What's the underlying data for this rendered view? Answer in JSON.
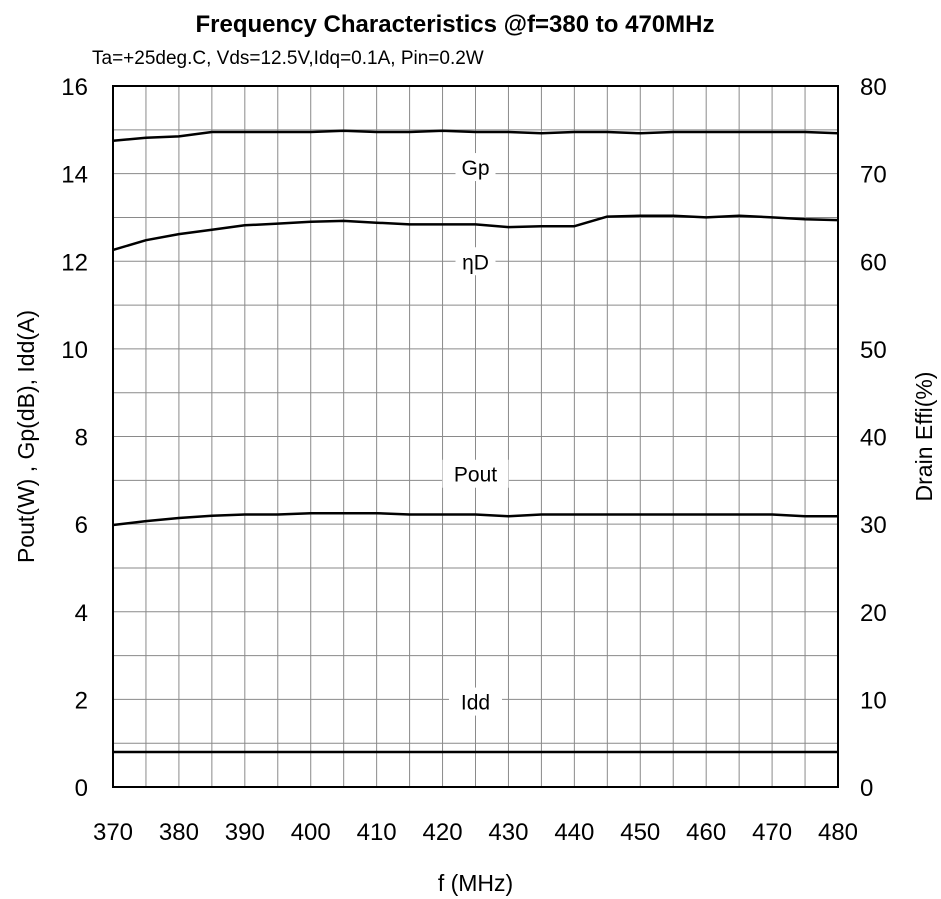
{
  "chart_data": {
    "type": "line",
    "title": "Frequency Characteristics @f=380 to 470MHz",
    "subtitle": "Ta=+25deg.C, Vds=12.5V,Idq=0.1A, Pin=0.2W",
    "xlabel": "f  (MHz)",
    "ylabel": "Pout(W) , Gp(dB), Idd(A)",
    "y2label": "Drain Effi(%)",
    "xlim": [
      370,
      480
    ],
    "ylim": [
      0,
      16
    ],
    "y2lim": [
      0,
      80
    ],
    "xticks": [
      "370",
      "380",
      "390",
      "400",
      "410",
      "420",
      "430",
      "440",
      "450",
      "460",
      "470",
      "480"
    ],
    "yticks": [
      "0",
      "2",
      "4",
      "6",
      "8",
      "10",
      "12",
      "14",
      "16"
    ],
    "y2ticks": [
      "0",
      "10",
      "20",
      "30",
      "40",
      "50",
      "60",
      "70",
      "80"
    ],
    "grid": true,
    "x": [
      370,
      375,
      380,
      385,
      390,
      395,
      400,
      405,
      410,
      415,
      420,
      425,
      430,
      435,
      440,
      445,
      450,
      455,
      460,
      465,
      470,
      475,
      480
    ],
    "series": [
      {
        "name": "Gp",
        "axis": "left",
        "values": [
          14.75,
          14.82,
          14.85,
          14.95,
          14.95,
          14.95,
          14.95,
          14.98,
          14.95,
          14.95,
          14.98,
          14.95,
          14.95,
          14.92,
          14.95,
          14.95,
          14.92,
          14.95,
          14.95,
          14.95,
          14.95,
          14.95,
          14.92
        ]
      },
      {
        "name": "ηD",
        "axis": "right",
        "values": [
          61.3,
          62.4,
          63.1,
          63.6,
          64.1,
          64.3,
          64.5,
          64.6,
          64.4,
          64.2,
          64.2,
          64.2,
          63.9,
          64.0,
          64.0,
          65.1,
          65.2,
          65.2,
          65.0,
          65.2,
          65.0,
          64.8,
          64.7
        ]
      },
      {
        "name": "Pout",
        "axis": "left",
        "values": [
          5.98,
          6.07,
          6.14,
          6.19,
          6.22,
          6.22,
          6.25,
          6.25,
          6.25,
          6.22,
          6.22,
          6.22,
          6.18,
          6.22,
          6.22,
          6.22,
          6.22,
          6.22,
          6.22,
          6.22,
          6.22,
          6.18,
          6.18
        ]
      },
      {
        "name": "Idd",
        "axis": "left",
        "values": [
          0.8,
          0.8,
          0.8,
          0.8,
          0.8,
          0.8,
          0.8,
          0.8,
          0.8,
          0.8,
          0.8,
          0.8,
          0.8,
          0.8,
          0.8,
          0.8,
          0.8,
          0.8,
          0.8,
          0.8,
          0.8,
          0.8,
          0.8
        ]
      }
    ],
    "labels": [
      {
        "text": "Gp",
        "x": 425,
        "y": 14.15
      },
      {
        "text": "ηD",
        "x": 425,
        "y": 12.0
      },
      {
        "text": "Pout",
        "x": 425,
        "y": 7.15
      },
      {
        "text": "Idd",
        "x": 425,
        "y": 1.95
      }
    ]
  }
}
